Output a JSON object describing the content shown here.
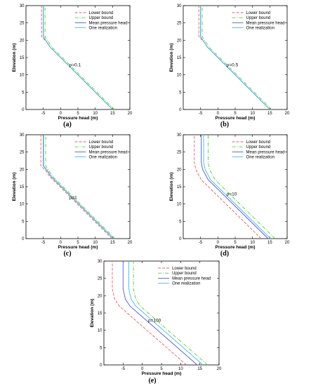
{
  "colors": {
    "lower": "#ee5a6a",
    "upper": "#55cc33",
    "mean": "#5555dd",
    "one": "#44bbdd",
    "axis": "#000000"
  },
  "chart_data": [
    {
      "type": "line",
      "panel_label": "(a)",
      "annotation": "ρ=0.1",
      "xlabel": "Pressure head (m)",
      "ylabel": "Elevation (m)",
      "xlim": [
        -10,
        20
      ],
      "ylim": [
        0,
        30
      ],
      "xticks": [
        "-5",
        "0",
        "5",
        "10",
        "15",
        "20"
      ],
      "yticks": [
        "0",
        "5",
        "10",
        "15",
        "20",
        "25",
        "30"
      ],
      "legend": "top-right",
      "grid": false,
      "series": [
        {
          "name": "Lower bound",
          "style": "dashed",
          "color": "#ee5a6a",
          "x": [
            15,
            14.5,
            -3,
            -4,
            -5.5,
            -5.5
          ],
          "y": [
            0,
            0.5,
            18,
            19.5,
            21,
            30
          ]
        },
        {
          "name": "Upper bound",
          "style": "dashdot",
          "color": "#55cc33",
          "x": [
            15.5,
            15,
            -2.5,
            -3.5,
            -4.5,
            -4.5
          ],
          "y": [
            0,
            0.5,
            18,
            19.5,
            21,
            30
          ]
        },
        {
          "name": "Mean pressure head",
          "style": "solid",
          "color": "#5555dd",
          "x": [
            15,
            14.5,
            -3,
            -4,
            -5,
            -5
          ],
          "y": [
            0,
            0.5,
            18,
            19.5,
            21,
            30
          ]
        },
        {
          "name": "One realization",
          "style": "solid",
          "color": "#44bbdd",
          "x": [
            15,
            14.5,
            -3,
            -4,
            -5,
            -5
          ],
          "y": [
            0,
            0.5,
            18,
            19.5,
            21,
            30
          ]
        }
      ]
    },
    {
      "type": "line",
      "panel_label": "(b)",
      "annotation": "ρ=0.5",
      "xlabel": "Pressure head (m)",
      "ylabel": "Elevation (m)",
      "xlim": [
        -10,
        20
      ],
      "ylim": [
        0,
        30
      ],
      "xticks": [
        "-5",
        "0",
        "5",
        "10",
        "15",
        "20"
      ],
      "yticks": [
        "0",
        "5",
        "10",
        "15",
        "20",
        "25",
        "30"
      ],
      "legend": "top-right",
      "grid": false,
      "series": [
        {
          "name": "Lower bound",
          "style": "dashed",
          "color": "#ee5a6a",
          "x": [
            15,
            14.5,
            -3,
            -4,
            -5.5,
            -5.5
          ],
          "y": [
            0,
            0.5,
            18,
            19.5,
            21,
            30
          ]
        },
        {
          "name": "Upper bound",
          "style": "dashdot",
          "color": "#55cc33",
          "x": [
            15.5,
            15,
            -2.5,
            -3.5,
            -4.5,
            -4.5
          ],
          "y": [
            0,
            0.5,
            18,
            19.5,
            21,
            30
          ]
        },
        {
          "name": "Mean pressure head",
          "style": "solid",
          "color": "#5555dd",
          "x": [
            15,
            14.5,
            -3,
            -4,
            -5,
            -5
          ],
          "y": [
            0,
            0.5,
            18,
            19.5,
            21,
            30
          ]
        },
        {
          "name": "One realization",
          "style": "solid",
          "color": "#44bbdd",
          "x": [
            15,
            14.5,
            -3,
            -4,
            -5,
            -5
          ],
          "y": [
            0,
            0.5,
            18,
            19.5,
            21,
            30
          ]
        }
      ]
    },
    {
      "type": "line",
      "panel_label": "(c)",
      "annotation": "ρ=1",
      "xlabel": "Pressure head (m)",
      "ylabel": "Elevation (m)",
      "xlim": [
        -10,
        20
      ],
      "ylim": [
        0,
        30
      ],
      "xticks": [
        "-5",
        "0",
        "5",
        "10",
        "15",
        "20"
      ],
      "yticks": [
        "0",
        "5",
        "10",
        "15",
        "20",
        "25",
        "30"
      ],
      "legend": "top-right",
      "grid": false,
      "series": [
        {
          "name": "Lower bound",
          "style": "dashed",
          "color": "#ee5a6a",
          "x": [
            14.8,
            14.3,
            -3.2,
            -4.2,
            -5.7,
            -5.7
          ],
          "y": [
            0,
            0.5,
            18,
            19.5,
            21,
            30
          ]
        },
        {
          "name": "Upper bound",
          "style": "dashdot",
          "color": "#55cc33",
          "x": [
            15.7,
            15.2,
            -2.3,
            -3.3,
            -4.3,
            -4.3
          ],
          "y": [
            0,
            0.5,
            18,
            19.5,
            21,
            30
          ]
        },
        {
          "name": "Mean pressure head",
          "style": "solid",
          "color": "#5555dd",
          "x": [
            15.2,
            14.7,
            -2.8,
            -3.8,
            -5,
            -5
          ],
          "y": [
            0,
            0.5,
            18,
            19.5,
            21,
            30
          ]
        },
        {
          "name": "One realization",
          "style": "solid",
          "color": "#44bbdd",
          "x": [
            15.3,
            14.8,
            -2.7,
            -3.7,
            -4.9,
            -4.9
          ],
          "y": [
            0,
            0.5,
            18,
            19.5,
            21,
            30
          ]
        }
      ]
    },
    {
      "type": "line",
      "panel_label": "(d)",
      "annotation": "ρ=10",
      "xlabel": "Pressure head (m)",
      "ylabel": "Elevation (m)",
      "xlim": [
        -10,
        20
      ],
      "ylim": [
        0,
        30
      ],
      "xticks": [
        "-5",
        "0",
        "5",
        "10",
        "15",
        "20"
      ],
      "yticks": [
        "0",
        "5",
        "10",
        "15",
        "20",
        "25",
        "30"
      ],
      "legend": "top-right",
      "grid": false,
      "series": [
        {
          "name": "Lower bound",
          "style": "dashed",
          "color": "#ee5a6a",
          "x": [
            12.5,
            12,
            -4.8,
            -5.6,
            -6.4,
            -6.8,
            -6.8
          ],
          "y": [
            0,
            0.5,
            17,
            18.5,
            20,
            22,
            30
          ]
        },
        {
          "name": "Upper bound",
          "style": "dashdot",
          "color": "#55cc33",
          "x": [
            16.5,
            16,
            -0.8,
            -1.6,
            -2.4,
            -2.8,
            -2.8
          ],
          "y": [
            0,
            0.5,
            17,
            18.5,
            20,
            22,
            30
          ]
        },
        {
          "name": "Mean pressure head",
          "style": "solid",
          "color": "#5555dd",
          "x": [
            14.5,
            14,
            -2.8,
            -3.6,
            -4.4,
            -4.8,
            -4.8
          ],
          "y": [
            0,
            0.5,
            17,
            18.5,
            20,
            22,
            30
          ]
        },
        {
          "name": "One realization",
          "style": "solid",
          "color": "#44bbdd",
          "x": [
            15.2,
            14.7,
            -2.1,
            -2.9,
            -3.7,
            -4.1,
            -4.1
          ],
          "y": [
            0,
            0.5,
            17,
            18.5,
            20,
            22,
            30
          ]
        }
      ]
    },
    {
      "type": "line",
      "panel_label": "(e)",
      "annotation": "ρ=100",
      "xlabel": "Pressure head (m)",
      "ylabel": "Elevation (m)",
      "xlim": [
        -10,
        20
      ],
      "ylim": [
        0,
        30
      ],
      "xticks": [
        "-5",
        "0",
        "5",
        "10",
        "15",
        "20"
      ],
      "yticks": [
        "0",
        "5",
        "10",
        "15",
        "20",
        "25",
        "30"
      ],
      "legend": "top-right",
      "grid": false,
      "series": [
        {
          "name": "Lower bound",
          "style": "dashed",
          "color": "#ee5a6a",
          "x": [
            11.5,
            11,
            -6,
            -7.2,
            -7.8,
            -7.8
          ],
          "y": [
            0,
            0.5,
            17,
            19,
            22,
            30
          ]
        },
        {
          "name": "Upper bound",
          "style": "dashdot",
          "color": "#55cc33",
          "x": [
            17,
            16.5,
            -0.5,
            -1.7,
            -2.3,
            -2.3
          ],
          "y": [
            0,
            0.5,
            17,
            19,
            22,
            30
          ]
        },
        {
          "name": "Mean pressure head",
          "style": "solid",
          "color": "#5555dd",
          "x": [
            14.3,
            13.8,
            -3.2,
            -4.4,
            -5,
            -5
          ],
          "y": [
            0,
            0.5,
            17,
            19,
            22,
            30
          ]
        },
        {
          "name": "One realization",
          "style": "solid",
          "color": "#44bbdd",
          "x": [
            15.8,
            15.3,
            -1.7,
            -2.9,
            -3.5,
            -3.5
          ],
          "y": [
            0,
            0.5,
            17,
            19,
            22,
            30
          ]
        }
      ]
    }
  ]
}
